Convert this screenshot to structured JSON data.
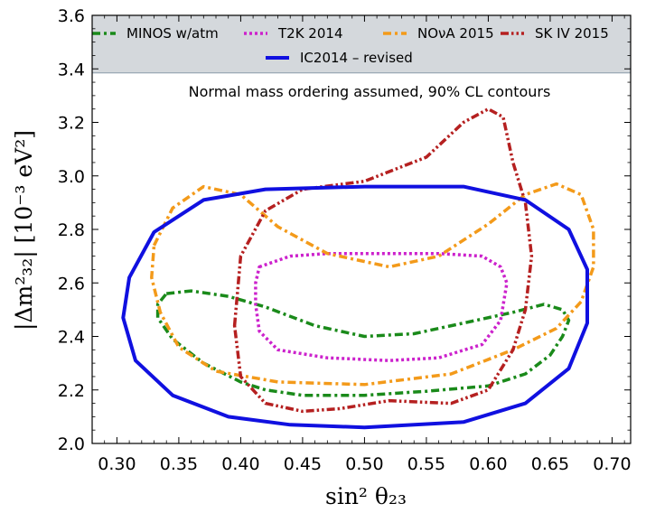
{
  "chart_data": {
    "type": "line",
    "title": "",
    "xlabel": "sin² θ₂₃",
    "ylabel": "|Δm²₃₂| [10⁻³ eV²]",
    "xlim": [
      0.28,
      0.715
    ],
    "ylim": [
      2.0,
      3.6
    ],
    "grid": false,
    "legend_position": "top",
    "annotation": "Normal mass ordering assumed, 90% CL contours",
    "x_ticks": [
      "0.30",
      "0.35",
      "0.40",
      "0.45",
      "0.50",
      "0.55",
      "0.60",
      "0.65",
      "0.70"
    ],
    "x_tick_values": [
      0.3,
      0.35,
      0.4,
      0.45,
      0.5,
      0.55,
      0.6,
      0.65,
      0.7
    ],
    "y_ticks": [
      "2.0",
      "2.2",
      "2.4",
      "2.6",
      "2.8",
      "3.0",
      "3.2",
      "3.4",
      "3.6"
    ],
    "y_tick_values": [
      2.0,
      2.2,
      2.4,
      2.6,
      2.8,
      3.0,
      3.2,
      3.4,
      3.6
    ],
    "series": [
      {
        "name": "MINOS w/atm",
        "color": "#1a8a1a",
        "dash": "dashdot",
        "points": [
          [
            0.34,
            2.56
          ],
          [
            0.36,
            2.57
          ],
          [
            0.39,
            2.55
          ],
          [
            0.42,
            2.51
          ],
          [
            0.46,
            2.44
          ],
          [
            0.5,
            2.4
          ],
          [
            0.54,
            2.41
          ],
          [
            0.58,
            2.45
          ],
          [
            0.62,
            2.49
          ],
          [
            0.645,
            2.52
          ],
          [
            0.66,
            2.5
          ],
          [
            0.665,
            2.46
          ],
          [
            0.66,
            2.4
          ],
          [
            0.65,
            2.33
          ],
          [
            0.63,
            2.26
          ],
          [
            0.6,
            2.215
          ],
          [
            0.55,
            2.195
          ],
          [
            0.5,
            2.18
          ],
          [
            0.45,
            2.18
          ],
          [
            0.42,
            2.2
          ],
          [
            0.4,
            2.23
          ],
          [
            0.37,
            2.3
          ],
          [
            0.345,
            2.39
          ],
          [
            0.333,
            2.47
          ],
          [
            0.333,
            2.52
          ]
        ]
      },
      {
        "name": "T2K 2014",
        "color": "#cc22cc",
        "dash": "dot",
        "points": [
          [
            0.415,
            2.66
          ],
          [
            0.44,
            2.7
          ],
          [
            0.47,
            2.71
          ],
          [
            0.52,
            2.71
          ],
          [
            0.56,
            2.71
          ],
          [
            0.595,
            2.7
          ],
          [
            0.61,
            2.66
          ],
          [
            0.615,
            2.6
          ],
          [
            0.61,
            2.46
          ],
          [
            0.595,
            2.37
          ],
          [
            0.56,
            2.32
          ],
          [
            0.52,
            2.31
          ],
          [
            0.47,
            2.32
          ],
          [
            0.43,
            2.35
          ],
          [
            0.415,
            2.42
          ],
          [
            0.412,
            2.52
          ],
          [
            0.412,
            2.6
          ]
        ]
      },
      {
        "name": "NOνA 2015",
        "color": "#f39a1a",
        "dash": "dashdot",
        "points": [
          [
            0.33,
            2.74
          ],
          [
            0.345,
            2.88
          ],
          [
            0.37,
            2.96
          ],
          [
            0.4,
            2.93
          ],
          [
            0.43,
            2.81
          ],
          [
            0.47,
            2.71
          ],
          [
            0.52,
            2.66
          ],
          [
            0.56,
            2.7
          ],
          [
            0.6,
            2.82
          ],
          [
            0.63,
            2.93
          ],
          [
            0.655,
            2.97
          ],
          [
            0.675,
            2.93
          ],
          [
            0.685,
            2.8
          ],
          [
            0.685,
            2.66
          ],
          [
            0.675,
            2.53
          ],
          [
            0.655,
            2.43
          ],
          [
            0.62,
            2.35
          ],
          [
            0.57,
            2.26
          ],
          [
            0.5,
            2.22
          ],
          [
            0.43,
            2.23
          ],
          [
            0.38,
            2.27
          ],
          [
            0.35,
            2.36
          ],
          [
            0.335,
            2.49
          ],
          [
            0.328,
            2.62
          ]
        ]
      },
      {
        "name": "SK IV 2015",
        "color": "#b52020",
        "dash": "dashdotdot",
        "points": [
          [
            0.395,
            2.44
          ],
          [
            0.4,
            2.7
          ],
          [
            0.42,
            2.87
          ],
          [
            0.45,
            2.95
          ],
          [
            0.5,
            2.98
          ],
          [
            0.55,
            3.07
          ],
          [
            0.58,
            3.2
          ],
          [
            0.6,
            3.25
          ],
          [
            0.612,
            3.22
          ],
          [
            0.62,
            3.05
          ],
          [
            0.63,
            2.9
          ],
          [
            0.635,
            2.7
          ],
          [
            0.63,
            2.5
          ],
          [
            0.62,
            2.35
          ],
          [
            0.6,
            2.2
          ],
          [
            0.57,
            2.15
          ],
          [
            0.52,
            2.16
          ],
          [
            0.48,
            2.13
          ],
          [
            0.45,
            2.12
          ],
          [
            0.42,
            2.15
          ],
          [
            0.4,
            2.25
          ]
        ]
      },
      {
        "name": "IC2014 – revised",
        "color": "#1010e0",
        "dash": "solid",
        "points": [
          [
            0.31,
            2.62
          ],
          [
            0.33,
            2.79
          ],
          [
            0.37,
            2.91
          ],
          [
            0.42,
            2.95
          ],
          [
            0.5,
            2.96
          ],
          [
            0.58,
            2.96
          ],
          [
            0.63,
            2.91
          ],
          [
            0.665,
            2.8
          ],
          [
            0.68,
            2.65
          ],
          [
            0.68,
            2.45
          ],
          [
            0.665,
            2.28
          ],
          [
            0.63,
            2.15
          ],
          [
            0.58,
            2.08
          ],
          [
            0.5,
            2.06
          ],
          [
            0.44,
            2.07
          ],
          [
            0.39,
            2.1
          ],
          [
            0.345,
            2.18
          ],
          [
            0.315,
            2.31
          ],
          [
            0.305,
            2.47
          ]
        ]
      }
    ]
  }
}
